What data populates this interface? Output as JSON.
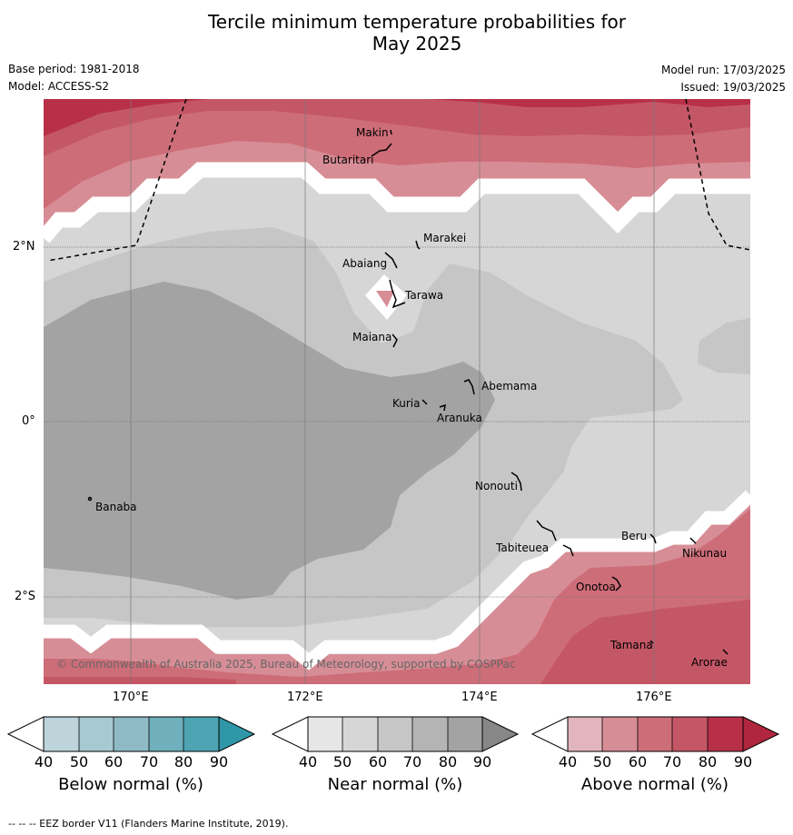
{
  "title_line1": "Tercile minimum temperature probabilities for",
  "title_line2": "May 2025",
  "base_period": "Base period: 1981-2018",
  "model": "Model: ACCESS-S2",
  "model_run": "Model run: 17/03/2025",
  "issued": "Issued: 19/03/2025",
  "copyright": "© Commonwealth of Australia 2025, Bureau of Meteorology, supported by COSPPac",
  "footer": "--  --  -- EEZ border V11 (Flanders Marine Institute, 2019).",
  "axes": {
    "lon_ticks": [
      "170°E",
      "172°E",
      "174°E",
      "176°E"
    ],
    "lat_ticks": [
      "2°N",
      "0°",
      "2°S"
    ]
  },
  "places": [
    {
      "name": "Makin"
    },
    {
      "name": "Butaritari"
    },
    {
      "name": "Marakei"
    },
    {
      "name": "Abaiang"
    },
    {
      "name": "Tarawa"
    },
    {
      "name": "Maiana"
    },
    {
      "name": "Abemama"
    },
    {
      "name": "Kuria"
    },
    {
      "name": "Aranuka"
    },
    {
      "name": "Nonouti"
    },
    {
      "name": "Banaba"
    },
    {
      "name": "Tabiteuea"
    },
    {
      "name": "Beru"
    },
    {
      "name": "Nikunau"
    },
    {
      "name": "Onotoa"
    },
    {
      "name": "Tamana"
    },
    {
      "name": "Arorae"
    }
  ],
  "colorbars": [
    {
      "title": "Below normal (%)",
      "ticks": [
        "40",
        "50",
        "60",
        "70",
        "80",
        "90"
      ],
      "colors": [
        "#bdd4db",
        "#a7c9d1",
        "#8ebbc5",
        "#70afbc",
        "#4ea4b2",
        "#2f97a8"
      ]
    },
    {
      "title": "Near normal (%)",
      "ticks": [
        "40",
        "50",
        "60",
        "70",
        "80",
        "90"
      ],
      "colors": [
        "#e6e6e6",
        "#d6d6d6",
        "#c6c6c6",
        "#b4b4b4",
        "#a3a3a3",
        "#878787"
      ]
    },
    {
      "title": "Above normal (%)",
      "ticks": [
        "40",
        "50",
        "60",
        "70",
        "80",
        "90"
      ],
      "colors": [
        "#e2b5bc",
        "#d78d95",
        "#cd6d78",
        "#c45766",
        "#b83048",
        "#b0263f"
      ]
    }
  ]
}
